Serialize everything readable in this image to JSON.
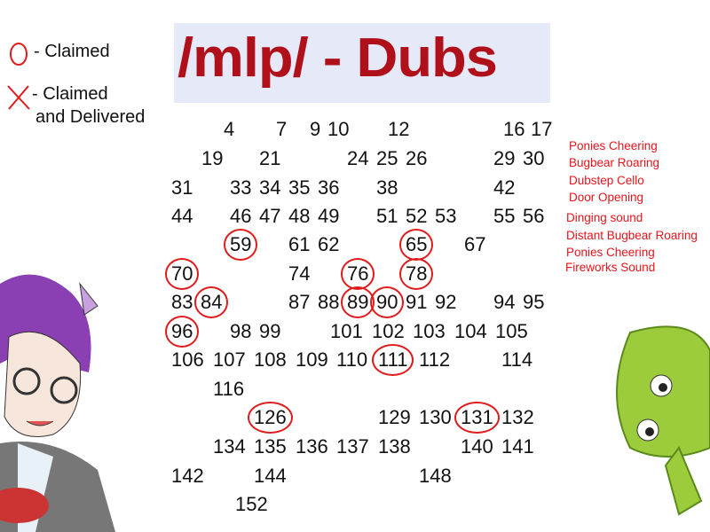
{
  "title": "/mlp/ - Dubs",
  "legend": [
    {
      "symbol": "circle-icon",
      "label": "- Claimed"
    },
    {
      "symbol": "x-icon",
      "label": "- Claimed",
      "label2": "and Delivered"
    }
  ],
  "colors": {
    "title": "#b0101a",
    "banner": "#e6e9f7",
    "marks": "#e01b1b",
    "notes": "#e8141c"
  },
  "grid": {
    "rows": [
      [
        {
          "n": "4"
        },
        {
          "n": "7"
        },
        {
          "n": "9"
        },
        {
          "n": "10"
        },
        {
          "n": "12"
        },
        {
          "n": "16"
        },
        {
          "n": "17"
        }
      ],
      [
        {
          "n": "19"
        },
        {
          "n": "21"
        },
        {
          "n": "24"
        },
        {
          "n": "25"
        },
        {
          "n": "26"
        },
        {
          "n": "29"
        },
        {
          "n": "30"
        }
      ],
      [
        {
          "n": "31"
        },
        {
          "n": "33"
        },
        {
          "n": "34"
        },
        {
          "n": "35"
        },
        {
          "n": "36"
        },
        {
          "n": "38"
        },
        {
          "n": "42"
        }
      ],
      [
        {
          "n": "44"
        },
        {
          "n": "46"
        },
        {
          "n": "47"
        },
        {
          "n": "48"
        },
        {
          "n": "49"
        },
        {
          "n": "51"
        },
        {
          "n": "52"
        },
        {
          "n": "53"
        },
        {
          "n": "55"
        },
        {
          "n": "56"
        }
      ],
      [
        {
          "n": "59",
          "claimed": true
        },
        {
          "n": "61"
        },
        {
          "n": "62"
        },
        {
          "n": "65",
          "claimed": true
        },
        {
          "n": "67"
        }
      ],
      [
        {
          "n": "70",
          "claimed": true
        },
        {
          "n": "74"
        },
        {
          "n": "76",
          "claimed": true
        },
        {
          "n": "78",
          "claimed": true
        }
      ],
      [
        {
          "n": "83"
        },
        {
          "n": "84",
          "claimed": true
        },
        {
          "n": "87"
        },
        {
          "n": "88"
        },
        {
          "n": "89",
          "claimed": true
        },
        {
          "n": "90",
          "claimed": true
        },
        {
          "n": "91"
        },
        {
          "n": "92"
        },
        {
          "n": "94"
        },
        {
          "n": "95"
        }
      ],
      [
        {
          "n": "96",
          "claimed": true
        },
        {
          "n": "98"
        },
        {
          "n": "99"
        },
        {
          "n": "101"
        },
        {
          "n": "102"
        },
        {
          "n": "103"
        },
        {
          "n": "104"
        },
        {
          "n": "105"
        }
      ],
      [
        {
          "n": "106"
        },
        {
          "n": "107"
        },
        {
          "n": "108"
        },
        {
          "n": "109"
        },
        {
          "n": "110"
        },
        {
          "n": "111",
          "claimed": true
        },
        {
          "n": "112"
        },
        {
          "n": "114"
        }
      ],
      [
        {
          "n": "116"
        }
      ],
      [
        {
          "n": "126",
          "claimed": true
        },
        {
          "n": "129"
        },
        {
          "n": "130"
        },
        {
          "n": "131",
          "claimed": true
        },
        {
          "n": "132"
        }
      ],
      [
        {
          "n": "134"
        },
        {
          "n": "135"
        },
        {
          "n": "136"
        },
        {
          "n": "137"
        },
        {
          "n": "138"
        },
        {
          "n": "140"
        },
        {
          "n": "141"
        }
      ],
      [
        {
          "n": "142"
        },
        {
          "n": "144"
        },
        {
          "n": "148"
        }
      ],
      [
        {
          "n": "152"
        }
      ]
    ]
  },
  "notes": [
    "Ponies Cheering",
    "Bugbear Roaring",
    "Dubstep Cello",
    "Door Opening",
    "Dinging sound",
    "Distant Bugbear Roaring",
    "Ponies Cheering",
    "Fireworks Sound"
  ]
}
